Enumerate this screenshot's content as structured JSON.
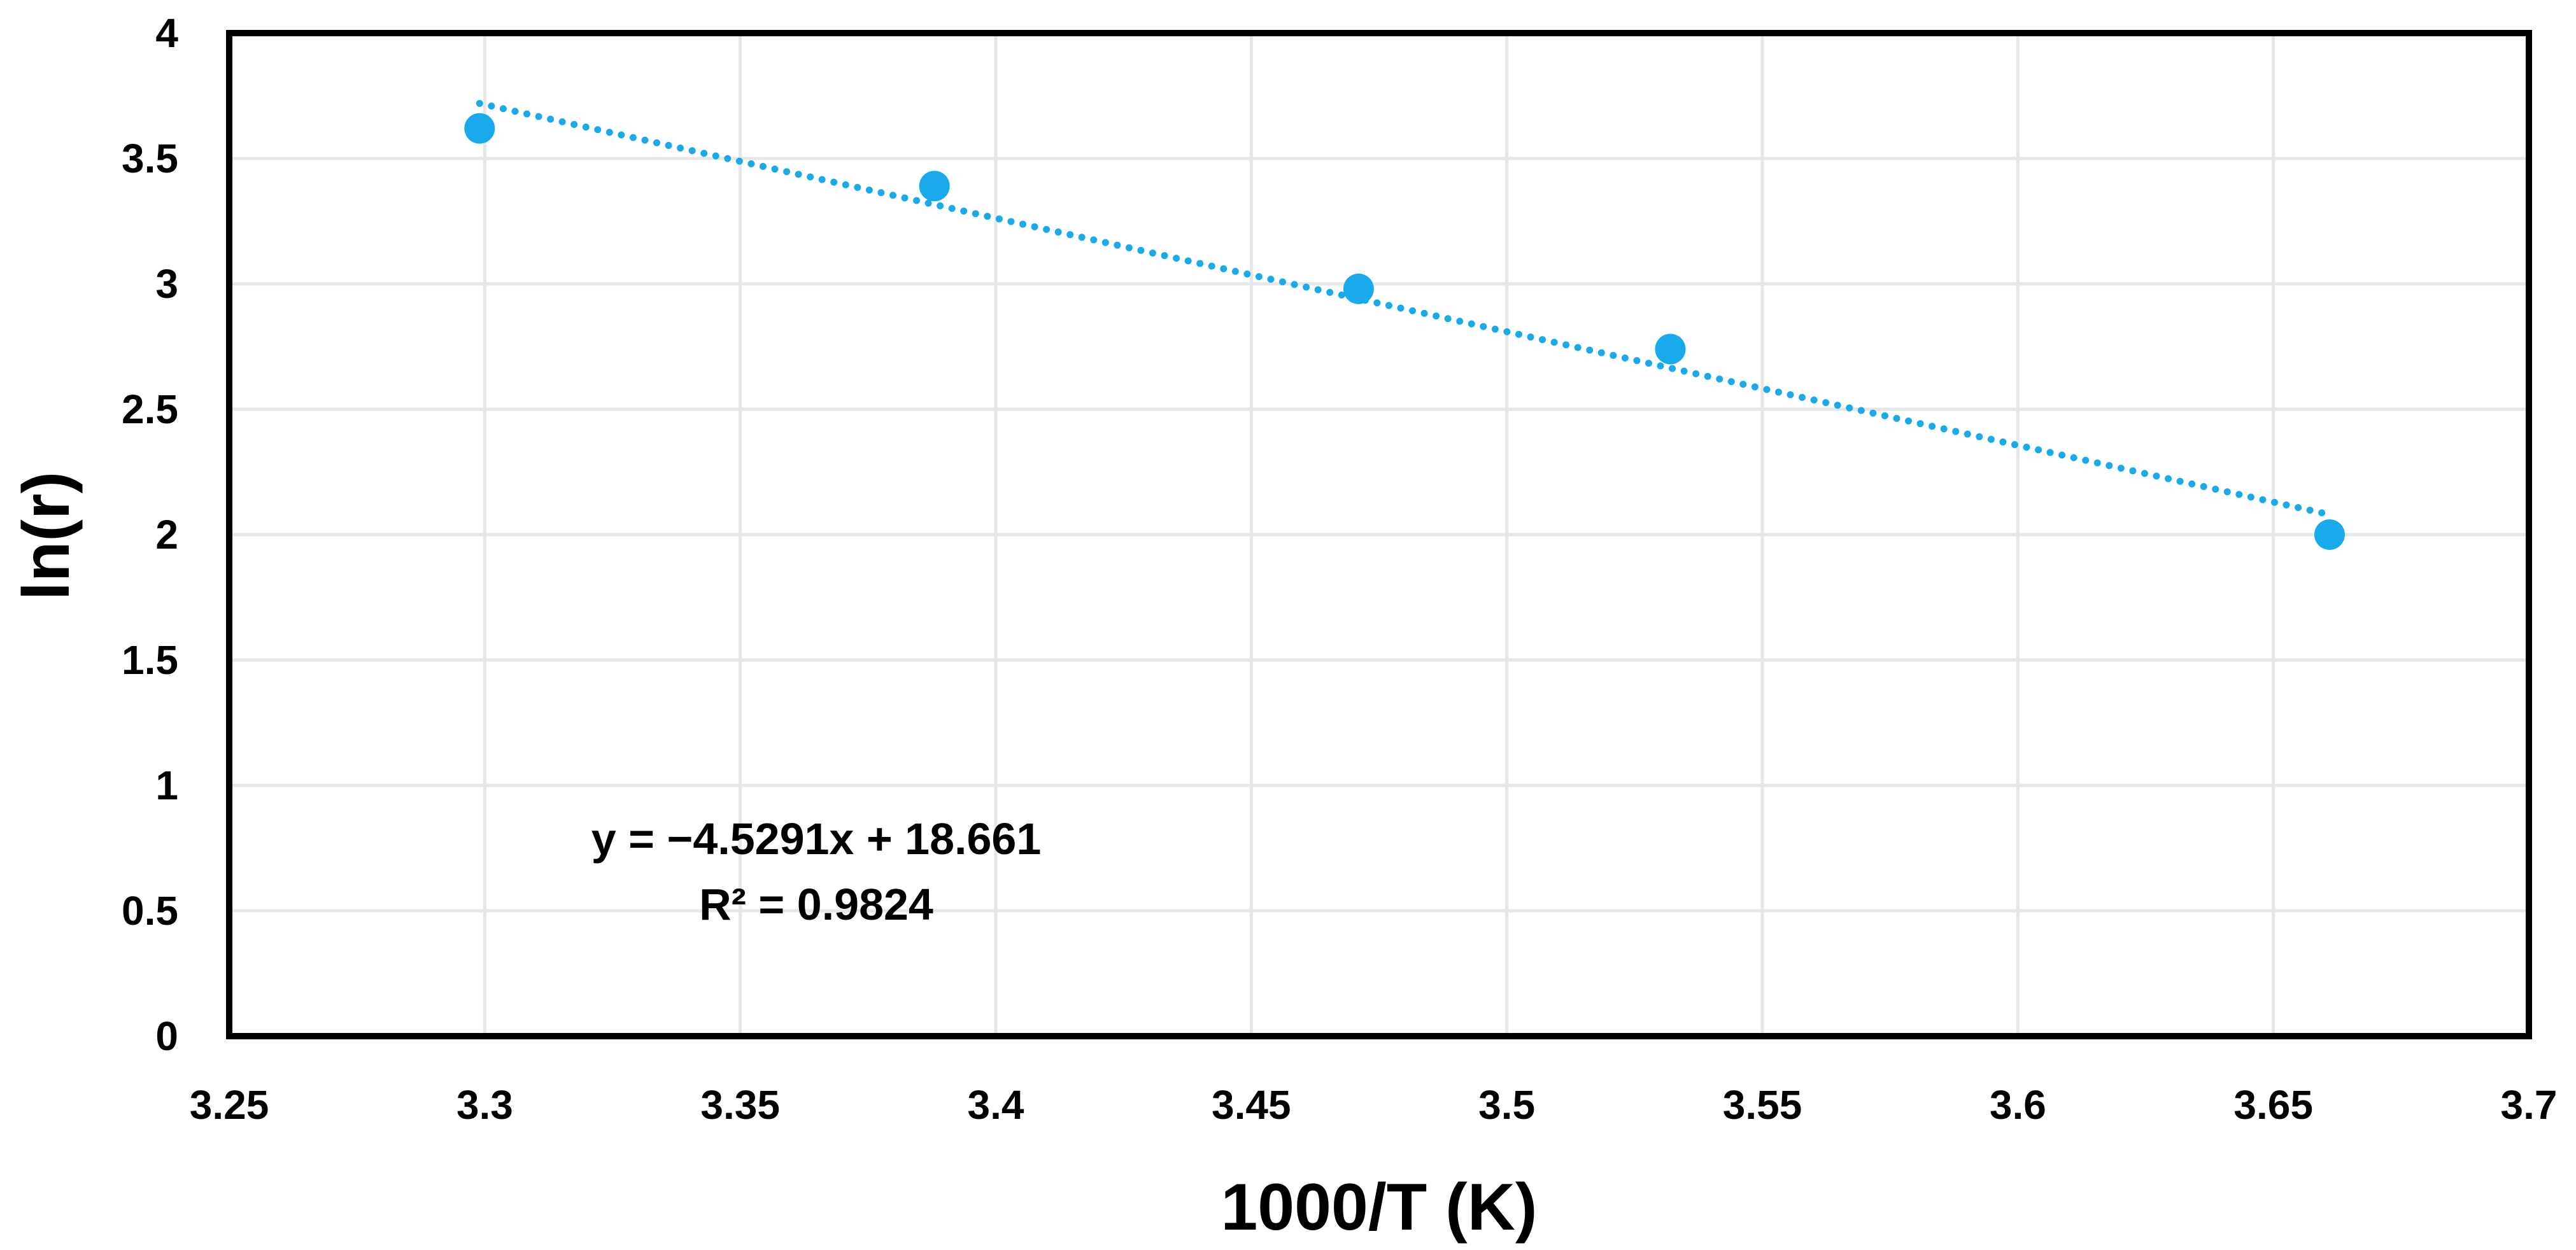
{
  "chart_data": {
    "type": "scatter",
    "title": "",
    "xlabel": "1000/T (K)",
    "ylabel": "ln(r)",
    "xlim": [
      3.25,
      3.7
    ],
    "ylim": [
      0,
      4
    ],
    "x_ticks": [
      3.25,
      3.3,
      3.35,
      3.4,
      3.45,
      3.5,
      3.55,
      3.6,
      3.65,
      3.7
    ],
    "x_tick_labels": [
      "3.25",
      "3.3",
      "3.35",
      "3.4",
      "3.45",
      "3.5",
      "3.55",
      "3.6",
      "3.65",
      "3.7"
    ],
    "y_ticks": [
      0,
      0.5,
      1,
      1.5,
      2,
      2.5,
      3,
      3.5,
      4
    ],
    "y_tick_labels": [
      "0",
      "0.5",
      "1",
      "1.5",
      "2",
      "2.5",
      "3",
      "3.5",
      "4"
    ],
    "grid": true,
    "series": [
      {
        "name": "ln(r)",
        "x": [
          3.299,
          3.388,
          3.471,
          3.532,
          3.661
        ],
        "y": [
          3.62,
          3.39,
          2.98,
          2.74,
          2.0
        ],
        "color": "#19aaeb"
      }
    ],
    "trendline": {
      "type": "linear",
      "slope": -4.5291,
      "intercept": 18.661,
      "x_range": [
        3.299,
        3.661
      ],
      "style": "dotted",
      "color": "#19aaeb"
    },
    "annotations": {
      "equation": "y = −4.5291x + 18.661",
      "r_squared": "R² = 0.9824"
    },
    "colors": {
      "grid": "#e6e6e6",
      "frame": "#000000",
      "marker": "#19aaeb"
    }
  }
}
